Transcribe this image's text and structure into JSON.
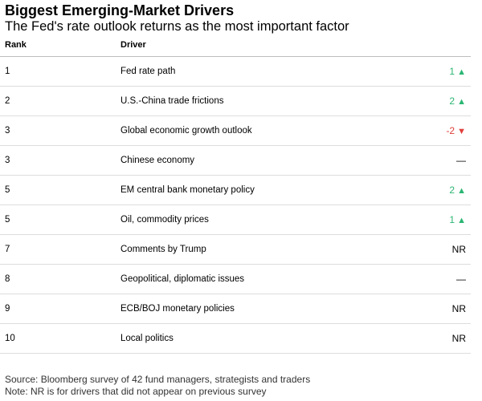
{
  "chart_data": {
    "type": "table",
    "title": "Biggest Emerging-Market Drivers",
    "subtitle": "The Fed's rate outlook returns as the most important factor",
    "columns": [
      "Rank",
      "Driver"
    ],
    "rows": [
      {
        "rank": "1",
        "driver": "Fed rate path",
        "change": "1",
        "direction": "up"
      },
      {
        "rank": "2",
        "driver": "U.S.-China trade frictions",
        "change": "2",
        "direction": "up"
      },
      {
        "rank": "3",
        "driver": "Global economic growth outlook",
        "change": "-2",
        "direction": "down"
      },
      {
        "rank": "3",
        "driver": "Chinese economy",
        "change": "—",
        "direction": "none"
      },
      {
        "rank": "5",
        "driver": "EM central bank monetary policy",
        "change": "2",
        "direction": "up"
      },
      {
        "rank": "5",
        "driver": "Oil, commodity prices",
        "change": "1",
        "direction": "up"
      },
      {
        "rank": "7",
        "driver": "Comments by Trump",
        "change": "NR",
        "direction": "none"
      },
      {
        "rank": "8",
        "driver": "Geopolitical, diplomatic issues",
        "change": "—",
        "direction": "none"
      },
      {
        "rank": "9",
        "driver": "ECB/BOJ monetary policies",
        "change": "NR",
        "direction": "none"
      },
      {
        "rank": "10",
        "driver": "Local politics",
        "change": "NR",
        "direction": "none"
      }
    ],
    "source": "Source: Bloomberg survey of 42 fund managers, strategists and traders",
    "note": "Note: NR is for drivers that did not appear on previous survey"
  },
  "colors": {
    "up": "#2bb673",
    "down": "#e0403a",
    "neutral": "#000000"
  }
}
